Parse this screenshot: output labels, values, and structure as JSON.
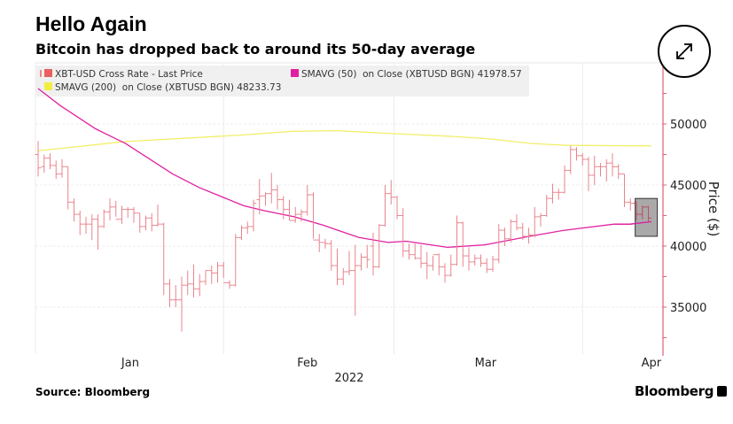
{
  "header": {
    "title": "Hello Again",
    "subtitle": "Bitcoin has dropped back to around its 50-day average"
  },
  "footer": {
    "source": "Source: Bloomberg",
    "logo": "Bloomberg"
  },
  "expand_icon": "expand-arrows-icon",
  "colors": {
    "price": "#e8848c",
    "sma50": "#e020a0",
    "sma200": "#f2ee6a",
    "axis": "#e06070",
    "highlight": "#8c8c8c"
  },
  "chart_data": {
    "type": "ohlc",
    "title": "Hello Again",
    "subtitle": "Bitcoin has dropped back to around its 50-day average",
    "ylabel": "Price ($)",
    "xlabel": "2022",
    "ylim": [
      32100,
      52900
    ],
    "y_ticks": [
      35000,
      40000,
      45000,
      50000
    ],
    "y_tick_labels": [
      "35000",
      "40000",
      "45000",
      "50000"
    ],
    "x_ticks": [
      {
        "label": "Jan",
        "index": 15.4
      },
      {
        "label": "Feb",
        "index": 45
      },
      {
        "label": "Mar",
        "index": 74.8
      },
      {
        "label": "Apr",
        "index": 102.5
      }
    ],
    "x_gridlines": [
      31,
      59.5,
      91
    ],
    "grid": true,
    "legend_position": "top-left",
    "legend": [
      {
        "label": "XBT-USD Cross Rate - Last Price",
        "color": "#e86060"
      },
      {
        "label": "SMAVG (50)  on Close (XBTUSD BGN) 41978.57",
        "color": "#e020a0"
      },
      {
        "label": "SMAVG (200)  on Close (XBTUSD BGN) 48233.73",
        "color": "#f2ee40"
      }
    ],
    "ohlc": [
      [
        47.5,
        48.6,
        45.7,
        46.4
      ],
      [
        46.5,
        47.5,
        46.0,
        47.2
      ],
      [
        47.2,
        47.6,
        46.3,
        46.6
      ],
      [
        46.6,
        47.0,
        45.5,
        45.9
      ],
      [
        45.9,
        47.1,
        45.6,
        46.5
      ],
      [
        46.5,
        46.5,
        43.0,
        43.6
      ],
      [
        43.6,
        43.9,
        42.0,
        42.6
      ],
      [
        42.6,
        42.9,
        40.9,
        41.8
      ],
      [
        41.8,
        42.4,
        41.0,
        41.8
      ],
      [
        41.8,
        42.6,
        40.5,
        42.2
      ],
      [
        42.2,
        42.6,
        39.7,
        41.6
      ],
      [
        41.6,
        43.0,
        41.5,
        42.8
      ],
      [
        42.8,
        43.9,
        42.1,
        43.2
      ],
      [
        43.2,
        43.7,
        42.4,
        42.2
      ],
      [
        42.2,
        43.3,
        41.8,
        43.0
      ],
      [
        43.0,
        43.2,
        42.3,
        43.0
      ],
      [
        43.0,
        43.2,
        41.9,
        42.7
      ],
      [
        42.7,
        42.7,
        41.1,
        41.6
      ],
      [
        41.6,
        42.5,
        41.3,
        42.3
      ],
      [
        42.3,
        42.7,
        41.2,
        41.7
      ],
      [
        41.7,
        43.4,
        41.6,
        41.8
      ],
      [
        41.8,
        41.9,
        36.0,
        36.9
      ],
      [
        36.9,
        37.3,
        35.0,
        35.6
      ],
      [
        35.6,
        36.8,
        35.0,
        35.6
      ],
      [
        35.6,
        37.5,
        33.0,
        36.8
      ],
      [
        36.8,
        38.0,
        36.0,
        36.9
      ],
      [
        36.9,
        38.5,
        35.8,
        36.5
      ],
      [
        36.5,
        37.7,
        35.9,
        37.1
      ],
      [
        37.1,
        38.0,
        36.8,
        38.0
      ],
      [
        38.0,
        38.4,
        36.9,
        37.8
      ],
      [
        37.8,
        38.7,
        37.0,
        38.4
      ],
      [
        38.4,
        38.7,
        37.4,
        37.0
      ],
      [
        37.0,
        37.2,
        36.5,
        36.8
      ],
      [
        36.8,
        41.0,
        36.7,
        40.7
      ],
      [
        40.7,
        41.7,
        40.5,
        41.5
      ],
      [
        41.5,
        42.0,
        41.0,
        41.6
      ],
      [
        41.6,
        43.8,
        41.2,
        43.5
      ],
      [
        43.8,
        45.5,
        42.6,
        44.1
      ],
      [
        44.1,
        44.4,
        43.3,
        44.3
      ],
      [
        44.3,
        46.0,
        43.5,
        44.6
      ],
      [
        44.6,
        45.0,
        43.0,
        43.8
      ],
      [
        43.8,
        44.1,
        42.2,
        43.0
      ],
      [
        43.0,
        43.8,
        42.1,
        42.1
      ],
      [
        42.1,
        43.2,
        41.9,
        42.6
      ],
      [
        42.6,
        43.0,
        42.0,
        42.8
      ],
      [
        42.8,
        45.0,
        42.5,
        44.2
      ],
      [
        44.2,
        44.4,
        40.6,
        40.5
      ],
      [
        40.5,
        41.0,
        39.5,
        40.3
      ],
      [
        40.3,
        40.6,
        39.8,
        40.2
      ],
      [
        40.2,
        40.5,
        38.0,
        38.4
      ],
      [
        38.4,
        39.8,
        36.8,
        37.3
      ],
      [
        37.3,
        38.2,
        36.8,
        37.9
      ],
      [
        37.9,
        39.6,
        37.6,
        38.0
      ],
      [
        38.0,
        40.1,
        34.3,
        38.4
      ],
      [
        38.4,
        39.4,
        38.0,
        39.1
      ],
      [
        39.1,
        40.1,
        38.2,
        38.9
      ],
      [
        40.0,
        41.1,
        37.6,
        38.3
      ],
      [
        38.3,
        41.8,
        38.2,
        41.7
      ],
      [
        41.7,
        45.0,
        41.6,
        44.3
      ],
      [
        44.3,
        45.4,
        43.4,
        44.0
      ],
      [
        44.0,
        44.1,
        42.2,
        42.5
      ],
      [
        42.5,
        43.1,
        39.1,
        39.6
      ],
      [
        39.6,
        40.2,
        38.9,
        39.3
      ],
      [
        39.3,
        40.2,
        38.9,
        39.0
      ],
      [
        39.0,
        40.1,
        38.2,
        38.6
      ],
      [
        38.6,
        39.5,
        37.3,
        38.4
      ],
      [
        38.4,
        39.2,
        38.0,
        39.3
      ],
      [
        39.3,
        39.4,
        37.6,
        38.3
      ],
      [
        38.3,
        38.6,
        37.0,
        37.6
      ],
      [
        37.6,
        39.3,
        37.5,
        38.5
      ],
      [
        38.5,
        42.5,
        38.4,
        41.9
      ],
      [
        41.9,
        42.0,
        38.3,
        39.2
      ],
      [
        39.2,
        39.9,
        38.0,
        38.7
      ],
      [
        38.7,
        39.3,
        38.4,
        39.0
      ],
      [
        39.0,
        39.3,
        38.3,
        38.6
      ],
      [
        38.6,
        39.0,
        37.8,
        38.1
      ],
      [
        38.1,
        39.2,
        37.9,
        38.9
      ],
      [
        38.9,
        41.8,
        38.6,
        41.3
      ],
      [
        41.3,
        41.5,
        40.0,
        40.6
      ],
      [
        40.6,
        42.2,
        40.3,
        42.0
      ],
      [
        42.0,
        42.6,
        41.3,
        41.5
      ],
      [
        41.5,
        41.9,
        40.5,
        40.8
      ],
      [
        40.8,
        41.5,
        40.2,
        40.9
      ],
      [
        40.9,
        43.2,
        40.7,
        42.4
      ],
      [
        42.4,
        42.7,
        41.6,
        42.5
      ],
      [
        42.5,
        44.2,
        42.4,
        43.9
      ],
      [
        43.9,
        45.1,
        43.5,
        44.4
      ],
      [
        44.4,
        44.7,
        43.8,
        44.4
      ],
      [
        44.4,
        46.6,
        44.3,
        46.2
      ],
      [
        46.2,
        48.2,
        45.9,
        47.9
      ],
      [
        47.9,
        48.1,
        47.0,
        47.4
      ],
      [
        47.4,
        47.6,
        46.6,
        47.1
      ],
      [
        47.1,
        47.3,
        44.5,
        45.8
      ],
      [
        45.8,
        47.4,
        45.0,
        46.5
      ],
      [
        46.5,
        46.8,
        45.7,
        46.5
      ],
      [
        46.5,
        47.1,
        45.3,
        46.8
      ],
      [
        46.8,
        47.6,
        45.7,
        46.5
      ],
      [
        46.5,
        46.7,
        45.5,
        45.9
      ],
      [
        45.9,
        45.9,
        43.2,
        43.6
      ],
      [
        43.6,
        43.9,
        42.9,
        43.5
      ],
      [
        43.5,
        43.7,
        42.1,
        42.6
      ],
      [
        42.6,
        43.3,
        42.2,
        43.2
      ],
      [
        43.2,
        43.3,
        42.0,
        42.3
      ]
    ],
    "ohlc_units": "thousands USD",
    "sma50": [
      [
        0,
        52.9
      ],
      [
        3.7,
        51.5
      ],
      [
        9.6,
        49.6
      ],
      [
        14.6,
        48.4
      ],
      [
        22.5,
        45.9
      ],
      [
        26.9,
        44.8
      ],
      [
        34.4,
        43.3
      ],
      [
        37.8,
        42.9
      ],
      [
        42.8,
        42.4
      ],
      [
        47.7,
        41.7
      ],
      [
        53.6,
        40.7
      ],
      [
        58.5,
        40.3
      ],
      [
        61.5,
        40.4
      ],
      [
        68.4,
        39.9
      ],
      [
        74.7,
        40.1
      ],
      [
        82.1,
        40.8
      ],
      [
        88,
        41.3
      ],
      [
        96.3,
        41.8
      ],
      [
        99,
        41.8
      ],
      [
        102.5,
        42.0
      ]
    ],
    "sma200": [
      [
        0,
        47.8
      ],
      [
        14.4,
        48.55
      ],
      [
        34.4,
        49.1
      ],
      [
        42.5,
        49.4
      ],
      [
        49.9,
        49.45
      ],
      [
        59.5,
        49.2
      ],
      [
        68.4,
        49.0
      ],
      [
        75.1,
        48.8
      ],
      [
        82.5,
        48.4
      ],
      [
        88.4,
        48.25
      ],
      [
        102.5,
        48.2
      ]
    ],
    "highlight_box": {
      "index_range": [
        99.8,
        103.5
      ],
      "price_range": [
        40800,
        43900
      ]
    }
  }
}
